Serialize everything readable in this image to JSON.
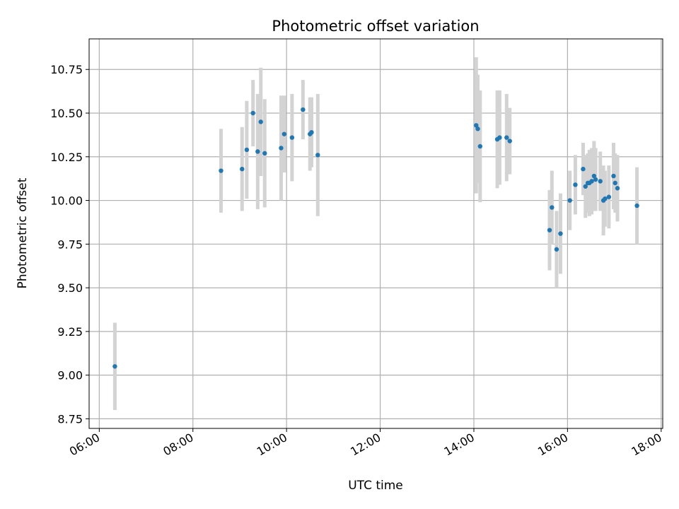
{
  "chart_data": {
    "type": "scatter",
    "title": "Photometric offset variation",
    "xlabel": "UTC time",
    "ylabel": "Photometric offset",
    "grid": true,
    "xlim": [
      "05:47",
      "18:02"
    ],
    "ylim": [
      8.695,
      10.925
    ],
    "x_ticks": [
      "06:00",
      "08:00",
      "10:00",
      "12:00",
      "14:00",
      "16:00",
      "18:00"
    ],
    "y_ticks": [
      "8.75",
      "9.00",
      "9.25",
      "9.50",
      "9.75",
      "10.00",
      "10.25",
      "10.50",
      "10.75"
    ],
    "colors": {
      "points": "#1f77b4",
      "errorbars": "#d3d3d3",
      "grid": "#b0b0b0",
      "axes": "#000000"
    },
    "series": [
      {
        "x": [
          "06:20",
          "08:36",
          "09:03",
          "09:09",
          "09:17",
          "09:23",
          "09:27",
          "09:32",
          "09:53",
          "09:57",
          "10:07",
          "10:21",
          "10:30",
          "10:32",
          "10:40",
          "14:03",
          "14:05",
          "14:08",
          "14:30",
          "14:33",
          "14:42",
          "14:46",
          "15:37",
          "15:40",
          "15:46",
          "15:51",
          "16:03",
          "16:10",
          "16:20",
          "16:23",
          "16:26",
          "16:28",
          "16:31",
          "16:34",
          "16:36",
          "16:42",
          "16:46",
          "16:48",
          "16:53",
          "16:59",
          "17:01",
          "17:04",
          "17:29"
        ],
        "y": [
          9.05,
          10.17,
          10.18,
          10.29,
          10.5,
          10.28,
          10.45,
          10.27,
          10.3,
          10.38,
          10.36,
          10.52,
          10.38,
          10.39,
          10.26,
          10.43,
          10.41,
          10.31,
          10.35,
          10.36,
          10.36,
          10.34,
          9.83,
          9.96,
          9.72,
          9.81,
          10.0,
          10.09,
          10.18,
          10.08,
          10.1,
          10.1,
          10.11,
          10.14,
          10.12,
          10.11,
          10.0,
          10.01,
          10.02,
          10.14,
          10.1,
          10.07,
          9.97
        ],
        "err": [
          0.25,
          0.24,
          0.24,
          0.28,
          0.19,
          0.33,
          0.31,
          0.31,
          0.3,
          0.22,
          0.25,
          0.17,
          0.21,
          0.2,
          0.35,
          0.39,
          0.31,
          0.32,
          0.28,
          0.27,
          0.25,
          0.19,
          0.23,
          0.21,
          0.22,
          0.23,
          0.17,
          0.17,
          0.15,
          0.18,
          0.17,
          0.19,
          0.19,
          0.2,
          0.18,
          0.17,
          0.2,
          0.16,
          0.18,
          0.19,
          0.17,
          0.19,
          0.22
        ]
      }
    ]
  }
}
